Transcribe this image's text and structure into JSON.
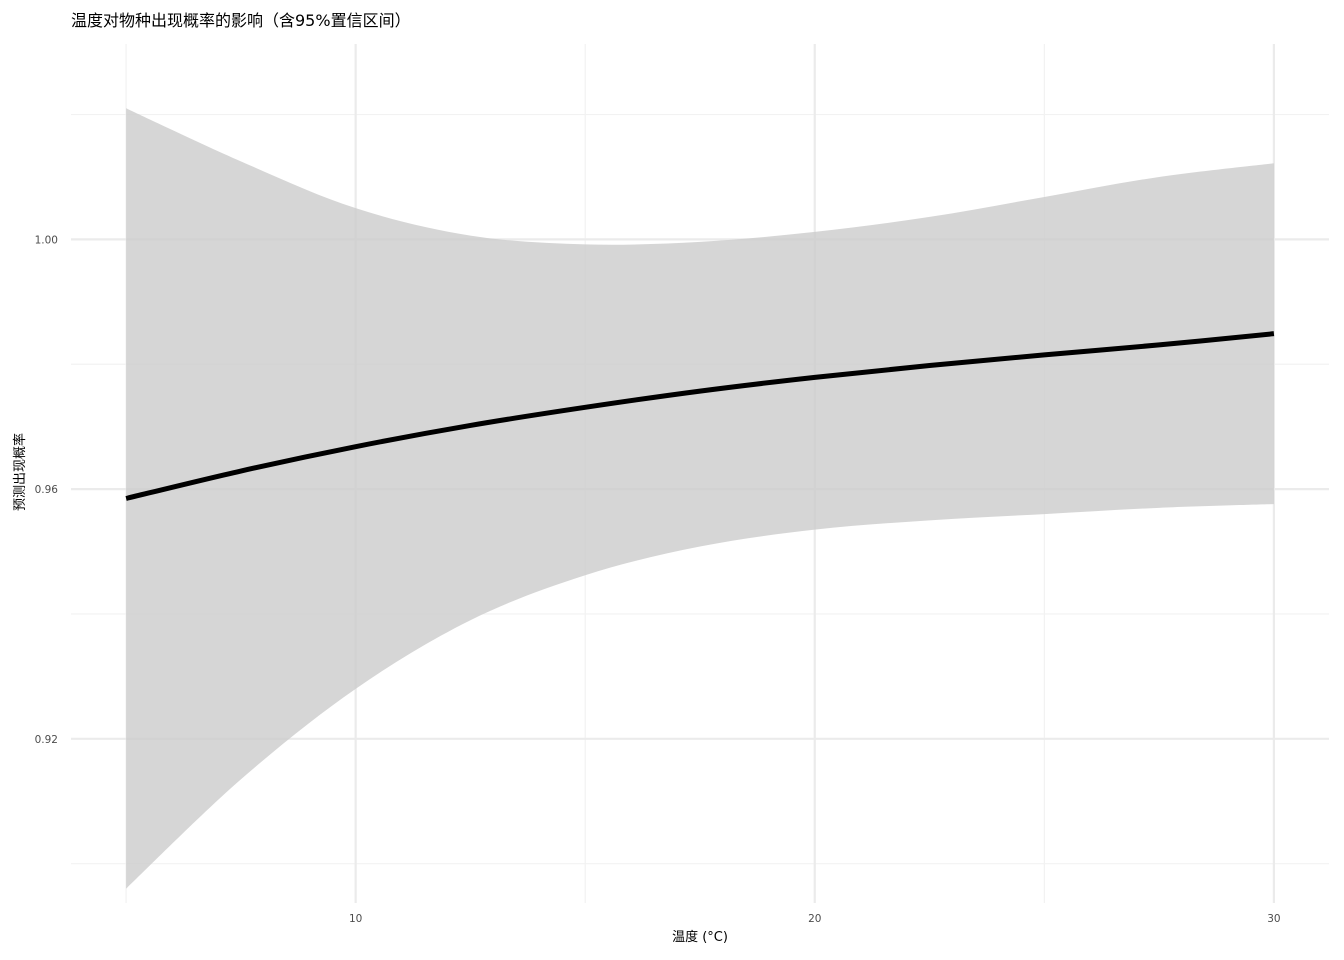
{
  "chart_data": {
    "type": "line",
    "title": "温度对物种出现概率的影响（含95%置信区间）",
    "xlabel": "温度 (°C)",
    "ylabel": "预测出现概率",
    "xlim": [
      3.8,
      31.2
    ],
    "ylim": [
      0.8937,
      1.0313
    ],
    "x_ticks": [
      10,
      20,
      30
    ],
    "y_ticks": [
      0.92,
      0.96,
      1.0
    ],
    "x_tick_labels": [
      "10",
      "20",
      "30"
    ],
    "y_tick_labels": [
      "0.92",
      "0.96",
      "1.00"
    ],
    "grid": true,
    "legend": "none",
    "series": [
      {
        "x": [
          5,
          7.5,
          10,
          12.5,
          15,
          17.5,
          20,
          22.5,
          25,
          27.5,
          30
        ],
        "y": [
          0.9585,
          0.9629,
          0.9668,
          0.9702,
          0.9731,
          0.9757,
          0.9779,
          0.9798,
          0.9815,
          0.9831,
          0.9849
        ],
        "ci_upper": [
          1.021,
          1.0125,
          1.005,
          1.0006,
          0.9992,
          0.9996,
          1.0012,
          1.0036,
          1.0068,
          1.01,
          1.0122
        ],
        "ci_lower": [
          0.896,
          0.9135,
          0.928,
          0.939,
          0.9462,
          0.9508,
          0.9535,
          0.955,
          0.956,
          0.957,
          0.9576
        ]
      }
    ],
    "colors": {
      "line": "#000000",
      "ribbon": "#cccccc",
      "grid_major": "#ebebeb",
      "grid_minor": "#f2f2f2"
    }
  }
}
